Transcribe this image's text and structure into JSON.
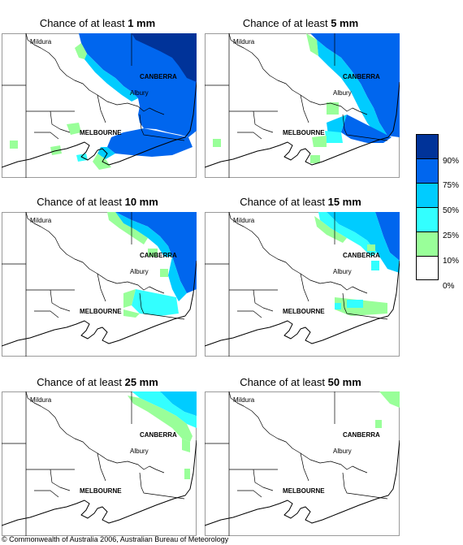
{
  "panels": [
    {
      "prefix": "Chance of at least ",
      "amount": "1 mm"
    },
    {
      "prefix": "Chance of at least ",
      "amount": "5 mm"
    },
    {
      "prefix": "Chance of at least ",
      "amount": "10 mm"
    },
    {
      "prefix": "Chance of at least ",
      "amount": "15 mm"
    },
    {
      "prefix": "Chance of at least ",
      "amount": "25 mm"
    },
    {
      "prefix": "Chance of at least ",
      "amount": "50 mm"
    }
  ],
  "cities": {
    "mildura": "Mildura",
    "canberra": "CANBERRA",
    "albury": "Albury",
    "melbourne": "MELBOURNE"
  },
  "legend": {
    "labels": [
      "90%",
      "75%",
      "50%",
      "25%",
      "10%",
      "0%"
    ],
    "colors": [
      "#003399",
      "#0066ee",
      "#00ccff",
      "#33ffff",
      "#99ff99",
      "#ffffff"
    ]
  },
  "copyright": "© Commonwealth of Australia 2006, Australian Bureau of Meteorology"
}
